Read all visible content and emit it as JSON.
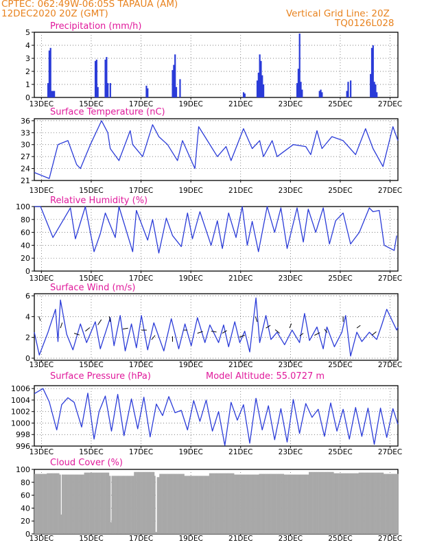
{
  "header": {
    "station": "CPTEC:   062:49W-06:05S   TAPAUA (AM)",
    "run": "12DEC2020 20Z (GMT)",
    "grid_note": "Vertical Grid Line: 20Z",
    "model_code": "TQ0126L028"
  },
  "colors": {
    "header": "#e8821e",
    "title": "#e0199b",
    "series": "#2a3bd8",
    "cloud": "#a8a8a8",
    "grid": "#555555"
  },
  "x_axis": {
    "start": "12DEC2020 20Z",
    "end": "27DEC2020 00Z",
    "ticks": [
      "13DEC",
      "15DEC",
      "17DEC",
      "19DEC",
      "21DEC",
      "23DEC",
      "25DEC",
      "27DEC"
    ]
  },
  "chart_data": [
    {
      "id": "precip",
      "type": "bar",
      "title": "Precipitation (mm/h)",
      "ylim": [
        0,
        5
      ],
      "yticks": [
        0,
        1,
        2,
        3,
        4,
        5
      ],
      "x_days": [
        0.55,
        0.6,
        0.65,
        0.7,
        0.75,
        0.8,
        2.45,
        2.5,
        2.55,
        2.85,
        2.9,
        2.95,
        3.05,
        4.5,
        4.55,
        5.55,
        5.6,
        5.65,
        5.7,
        5.85,
        8.4,
        8.45,
        8.95,
        9.0,
        9.05,
        9.1,
        9.15,
        9.2,
        10.55,
        10.6,
        10.65,
        10.7,
        10.75,
        11.45,
        11.5,
        11.55,
        12.55,
        12.6,
        12.7,
        13.5,
        13.55,
        13.6,
        13.65,
        13.7,
        13.75
      ],
      "values": [
        1.1,
        3.6,
        3.8,
        0.5,
        0.5,
        0.5,
        2.8,
        2.9,
        0.8,
        2.9,
        3.1,
        1.1,
        1.1,
        0.9,
        0.7,
        2.1,
        2.5,
        3.3,
        0.8,
        1.4,
        0.4,
        0.3,
        1.3,
        1.9,
        3.3,
        2.8,
        1.7,
        1.0,
        1.1,
        2.2,
        4.9,
        1.2,
        0.6,
        0.5,
        0.6,
        0.4,
        0.5,
        1.2,
        1.3,
        1.8,
        3.8,
        4.0,
        1.2,
        1.0,
        0.4
      ]
    },
    {
      "id": "temp",
      "type": "line",
      "title": "Surface Temperature (nC)",
      "ylim": [
        21,
        36.5
      ],
      "yticks": [
        21,
        24,
        27,
        30,
        33,
        36
      ],
      "x_days": [
        0,
        0.6,
        0.95,
        1.35,
        1.7,
        1.85,
        2.25,
        2.7,
        2.95,
        3.05,
        3.4,
        3.85,
        3.95,
        4.35,
        4.75,
        5.0,
        5.35,
        5.75,
        5.95,
        6.45,
        6.6,
        6.95,
        7.35,
        7.7,
        7.9,
        8.4,
        8.75,
        9.05,
        9.2,
        9.55,
        9.75,
        10.4,
        10.9,
        11.1,
        11.35,
        11.55,
        11.95,
        12.4,
        12.9,
        13.3,
        13.6,
        14.0,
        14.4,
        14.6
      ],
      "values": [
        23,
        21.5,
        30,
        31,
        25,
        24,
        30,
        36,
        33,
        29,
        26,
        33.5,
        30,
        27,
        35,
        32,
        30,
        26,
        31,
        24,
        34.5,
        31,
        27,
        29.5,
        26,
        34,
        29,
        31,
        27,
        31,
        27,
        30,
        29.5,
        27.5,
        33.5,
        29,
        32,
        31,
        27.5,
        34,
        29,
        24.5,
        34.5,
        31
      ]
    },
    {
      "id": "rh",
      "type": "line",
      "title": "Relative Humidity (%)",
      "ylim": [
        0,
        100
      ],
      "yticks": [
        0,
        20,
        40,
        60,
        80,
        100
      ],
      "x_days": [
        0,
        0.25,
        0.75,
        1.45,
        1.65,
        2.05,
        2.4,
        2.65,
        2.85,
        3.25,
        3.4,
        3.95,
        4.1,
        4.55,
        4.75,
        5.0,
        5.3,
        5.55,
        5.9,
        6.15,
        6.35,
        6.65,
        7.1,
        7.35,
        7.55,
        7.8,
        8.1,
        8.35,
        8.55,
        8.75,
        9.0,
        9.35,
        9.65,
        9.9,
        10.15,
        10.55,
        10.8,
        11.0,
        11.3,
        11.6,
        11.85,
        12.1,
        12.4,
        12.7,
        13.05,
        13.45,
        13.6,
        13.85,
        14.05,
        14.45,
        14.55
      ],
      "values": [
        100,
        100,
        52,
        98,
        50,
        100,
        30,
        58,
        90,
        52,
        100,
        30,
        94,
        48,
        80,
        28,
        82,
        55,
        38,
        90,
        50,
        92,
        40,
        78,
        35,
        90,
        52,
        100,
        40,
        77,
        30,
        100,
        60,
        98,
        35,
        98,
        45,
        96,
        60,
        98,
        42,
        78,
        90,
        42,
        60,
        98,
        92,
        94,
        40,
        32,
        55
      ]
    },
    {
      "id": "wind",
      "type": "line",
      "title": "Surface Wind (m/s)",
      "ylim": [
        -0.2,
        6.2
      ],
      "yticks": [
        0,
        2,
        4,
        6
      ],
      "x_days": [
        0,
        0.2,
        0.55,
        0.85,
        0.95,
        1.05,
        1.3,
        1.55,
        1.85,
        2.1,
        2.45,
        2.65,
        3.05,
        3.2,
        3.45,
        3.65,
        3.9,
        4.1,
        4.3,
        4.55,
        4.8,
        5.2,
        5.5,
        5.8,
        6.05,
        6.3,
        6.55,
        6.85,
        7.05,
        7.4,
        7.6,
        7.8,
        8.05,
        8.25,
        8.45,
        8.65,
        8.9,
        9.05,
        9.3,
        9.5,
        9.75,
        10.05,
        10.35,
        10.65,
        10.85,
        11.05,
        11.35,
        11.6,
        11.75,
        12.05,
        12.35,
        12.5,
        12.7,
        12.95,
        13.15,
        13.45,
        13.75,
        13.95,
        14.15,
        14.55,
        14.6
      ],
      "values": [
        2.5,
        0.3,
        2.5,
        4.7,
        1.6,
        5.6,
        2.3,
        0.8,
        3.3,
        1.5,
        3.5,
        0.9,
        3.9,
        1.2,
        4.1,
        0.7,
        3.3,
        1.0,
        4.1,
        0.8,
        3.4,
        0.7,
        3.8,
        0.9,
        3.3,
        1.2,
        3.9,
        1.5,
        3.2,
        1.5,
        3.2,
        1.1,
        3.5,
        1.5,
        2.6,
        0.6,
        5.8,
        1.5,
        4.1,
        1.8,
        2.5,
        1.3,
        2.7,
        1.5,
        4.3,
        1.7,
        3.0,
        0.9,
        3.0,
        1.1,
        2.5,
        4.1,
        0.2,
        2.5,
        1.6,
        2.5,
        1.8,
        3.2,
        4.7,
        2.7,
        3.0
      ]
    },
    {
      "id": "pressure",
      "type": "line",
      "title": "Surface Pressure (hPa)",
      "annotation": "Model Altitude: 55.0727 m",
      "ylim": [
        996,
        1006.5
      ],
      "yticks": [
        996,
        998,
        1000,
        1002,
        1004,
        1006
      ],
      "x_days": [
        0,
        0.35,
        0.6,
        0.9,
        1.1,
        1.35,
        1.6,
        1.9,
        2.15,
        2.4,
        2.6,
        2.85,
        3.1,
        3.35,
        3.6,
        3.9,
        4.15,
        4.4,
        4.65,
        4.9,
        5.15,
        5.4,
        5.65,
        5.9,
        6.15,
        6.4,
        6.65,
        6.9,
        7.15,
        7.4,
        7.65,
        7.9,
        8.15,
        8.4,
        8.65,
        8.9,
        9.15,
        9.4,
        9.65,
        9.9,
        10.15,
        10.4,
        10.65,
        10.9,
        11.15,
        11.4,
        11.65,
        11.9,
        12.15,
        12.4,
        12.65,
        12.9,
        13.15,
        13.4,
        13.65,
        13.9,
        14.15,
        14.4,
        14.6
      ],
      "values": [
        1005.1,
        1006,
        1003.7,
        998.8,
        1003.2,
        1004.4,
        1003.6,
        999.3,
        1005.2,
        997.2,
        1002,
        1004.7,
        998.6,
        1005,
        997.8,
        1004.2,
        999,
        1004.5,
        997.6,
        1003.3,
        1001.3,
        1004.6,
        1001.8,
        1002.2,
        998.8,
        1003.9,
        1000.3,
        1004,
        998.6,
        1002,
        996.1,
        1003.6,
        1000.5,
        1003.2,
        996.5,
        1004.3,
        998.8,
        1003,
        997.1,
        1002.5,
        996.7,
        1004.1,
        998.2,
        1003.4,
        1001,
        1002.4,
        997.7,
        1003.5,
        998.6,
        1002.4,
        997.2,
        1002.7,
        997.7,
        1002.6,
        996.3,
        1002.6,
        997.5,
        1002.5,
        999.8
      ]
    },
    {
      "id": "cloud",
      "type": "area",
      "title": "Cloud Cover (%)",
      "ylim": [
        0,
        100
      ],
      "yticks": [
        0,
        20,
        40,
        60,
        80,
        100
      ],
      "x_days": [
        0,
        0.5,
        1.0,
        1.05,
        1.1,
        2.0,
        3.0,
        3.05,
        3.1,
        4.0,
        4.8,
        4.85,
        4.9,
        5.0,
        6.0,
        7.0,
        8.0,
        9.0,
        10.0,
        11.0,
        12.0,
        13.0,
        14.0,
        14.6
      ],
      "values": [
        93,
        94,
        92,
        30,
        92,
        95,
        90,
        18,
        90,
        96,
        90,
        3,
        88,
        93,
        90,
        94,
        92,
        93,
        92,
        96,
        94,
        95,
        93,
        92
      ]
    }
  ]
}
